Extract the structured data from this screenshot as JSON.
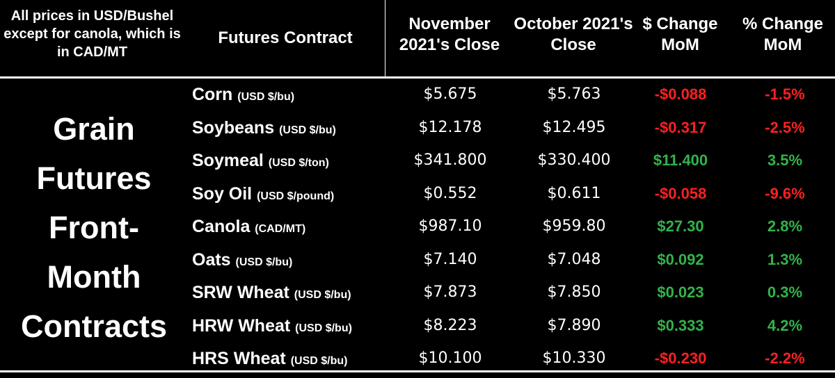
{
  "colors": {
    "background": "#000000",
    "text": "#ffffff",
    "negative": "#ff2020",
    "positive": "#33b34a"
  },
  "header": {
    "note": "All prices in USD/Bushel except for canola, which is in CAD/MT",
    "contract": "Futures Contract",
    "nov_close": "November 2021's Close",
    "oct_close": "October 2021's Close",
    "dollar_change": "$ Change MoM",
    "pct_change": "% Change MoM"
  },
  "side_title": "Grain\nFutures\nFront-\nMonth\nContracts",
  "chart_data": {
    "type": "table",
    "columns": [
      "Futures Contract",
      "November 2021's Close",
      "October 2021's Close",
      "$ Change MoM",
      "% Change MoM"
    ],
    "rows": [
      {
        "name": "Corn",
        "unit": "(USD $/bu)",
        "nov": "$5.675",
        "oct": "$5.763",
        "change": "-$0.088",
        "pct": "-1.5%",
        "sign": "neg"
      },
      {
        "name": "Soybeans",
        "unit": "(USD $/bu)",
        "nov": "$12.178",
        "oct": "$12.495",
        "change": "-$0.317",
        "pct": "-2.5%",
        "sign": "neg"
      },
      {
        "name": "Soymeal",
        "unit": "(USD $/ton)",
        "nov": "$341.800",
        "oct": "$330.400",
        "change": "$11.400",
        "pct": "3.5%",
        "sign": "pos"
      },
      {
        "name": "Soy Oil",
        "unit": "(USD $/pound)",
        "nov": "$0.552",
        "oct": "$0.611",
        "change": "-$0.058",
        "pct": "-9.6%",
        "sign": "neg"
      },
      {
        "name": "Canola",
        "unit": "(CAD/MT)",
        "nov": "$987.10",
        "oct": "$959.80",
        "change": "$27.30",
        "pct": "2.8%",
        "sign": "pos"
      },
      {
        "name": "Oats",
        "unit": "(USD $/bu)",
        "nov": "$7.140",
        "oct": "$7.048",
        "change": "$0.092",
        "pct": "1.3%",
        "sign": "pos"
      },
      {
        "name": "SRW Wheat",
        "unit": "(USD $/bu)",
        "nov": "$7.873",
        "oct": "$7.850",
        "change": "$0.023",
        "pct": "0.3%",
        "sign": "pos"
      },
      {
        "name": "HRW Wheat",
        "unit": "(USD $/bu)",
        "nov": "$8.223",
        "oct": "$7.890",
        "change": "$0.333",
        "pct": "4.2%",
        "sign": "pos"
      },
      {
        "name": "HRS Wheat",
        "unit": "(USD $/bu)",
        "nov": "$10.100",
        "oct": "$10.330",
        "change": "-$0.230",
        "pct": "-2.2%",
        "sign": "neg"
      }
    ]
  }
}
